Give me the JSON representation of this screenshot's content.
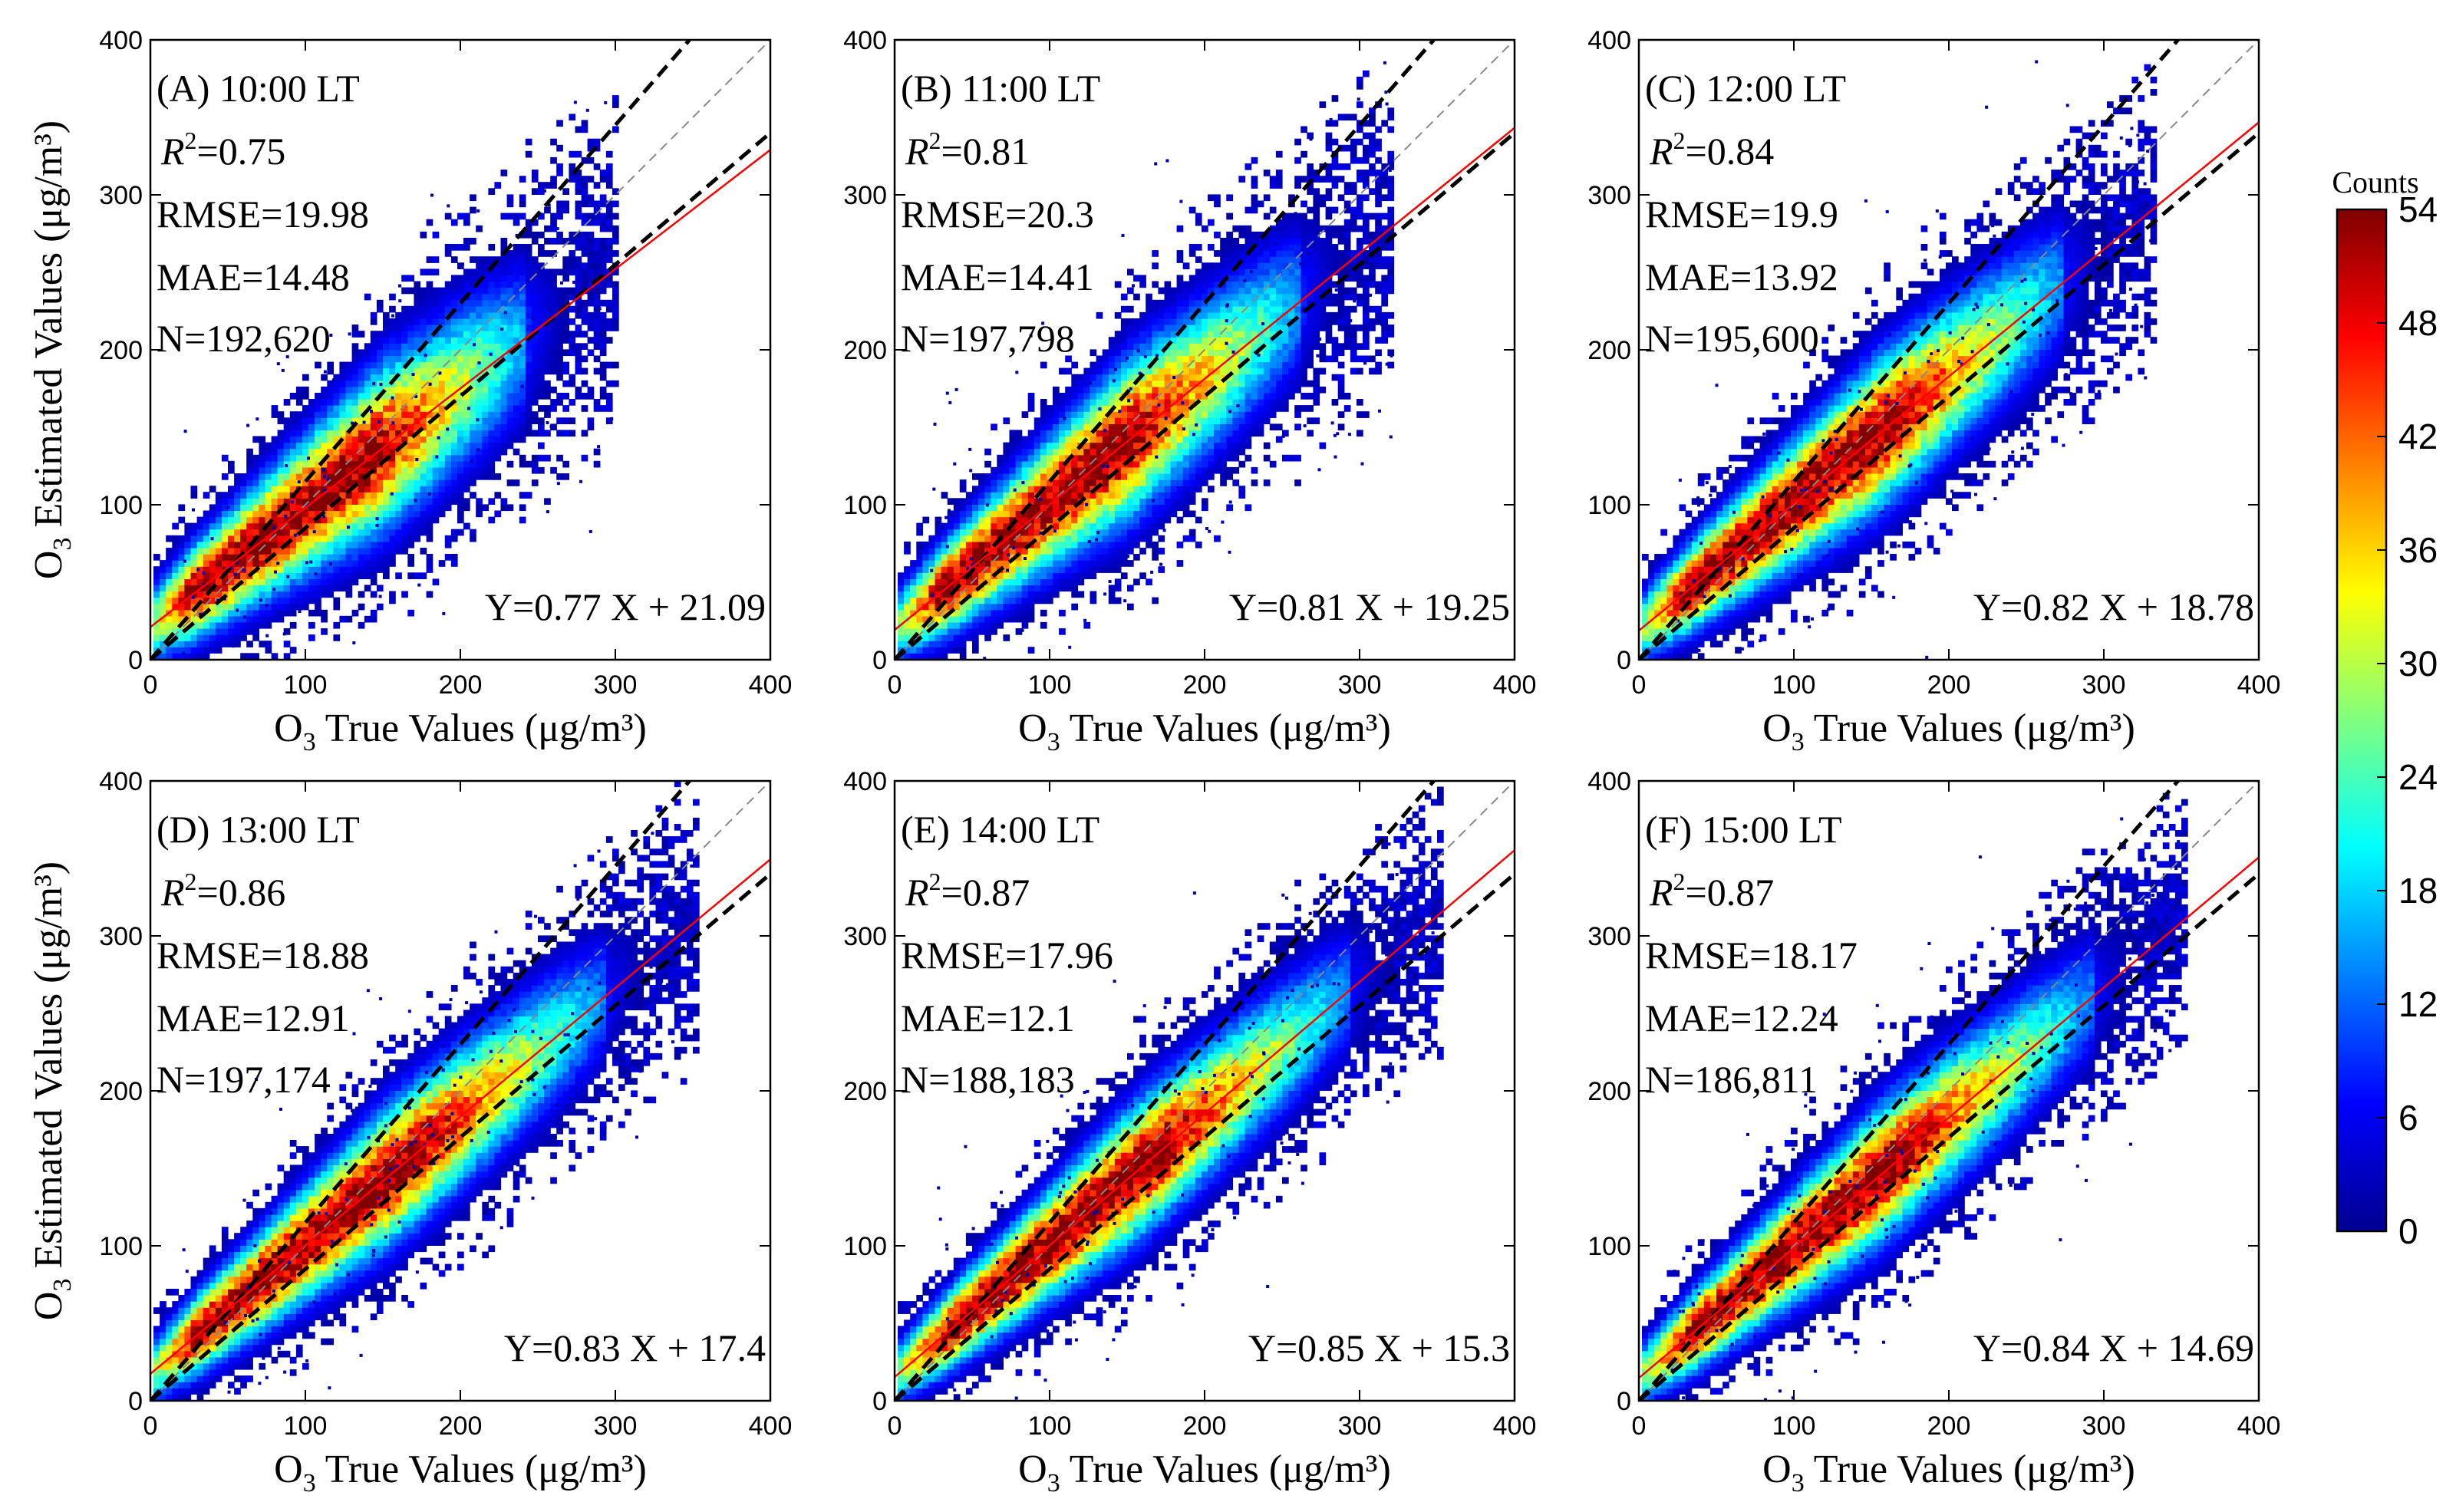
{
  "chart_data": [
    {
      "type": "heatmap",
      "panel": "(A) 10:00 LT",
      "stats": {
        "r2": "=0.75",
        "rmse": "RMSE=19.98",
        "mae": "MAE=14.48",
        "n": "N=192,620"
      },
      "equation": "Y=0.77 X + 21.09",
      "fit": {
        "slope": 0.77,
        "intercept": 21.09
      },
      "cloud": {
        "halfwidth": 42,
        "max": 240,
        "peak": [
          25,
          140
        ]
      },
      "xlim": [
        0,
        400
      ],
      "ylim": [
        0,
        400
      ]
    },
    {
      "type": "heatmap",
      "panel": "(B) 11:00 LT",
      "stats": {
        "r2": "=0.81",
        "rmse": "RMSE=20.3",
        "mae": "MAE=14.41",
        "n": "N=197,798"
      },
      "equation": "Y=0.81 X + 19.25",
      "fit": {
        "slope": 0.81,
        "intercept": 19.25
      },
      "cloud": {
        "halfwidth": 40,
        "max": 260,
        "peak": [
          30,
          150
        ]
      },
      "xlim": [
        0,
        400
      ],
      "ylim": [
        0,
        400
      ]
    },
    {
      "type": "heatmap",
      "panel": "(C) 12:00 LT",
      "stats": {
        "r2": "=0.84",
        "rmse": "RMSE=19.9",
        "mae": "MAE=13.92",
        "n": "N=195,600"
      },
      "equation": "Y=0.82 X + 18.78",
      "fit": {
        "slope": 0.82,
        "intercept": 18.78
      },
      "cloud": {
        "halfwidth": 38,
        "max": 270,
        "peak": [
          30,
          160
        ]
      },
      "xlim": [
        0,
        400
      ],
      "ylim": [
        0,
        400
      ]
    },
    {
      "type": "heatmap",
      "panel": "(D) 13:00 LT",
      "stats": {
        "r2": "=0.86",
        "rmse": "RMSE=18.88",
        "mae": "MAE=12.91",
        "n": "N=197,174"
      },
      "equation": "Y=0.83 X + 17.4",
      "fit": {
        "slope": 0.83,
        "intercept": 17.4
      },
      "cloud": {
        "halfwidth": 35,
        "max": 290,
        "peak": [
          30,
          170
        ]
      },
      "xlim": [
        0,
        400
      ],
      "ylim": [
        0,
        400
      ]
    },
    {
      "type": "heatmap",
      "panel": "(E) 14:00 LT",
      "stats": {
        "r2": "=0.87",
        "rmse": "RMSE=17.96",
        "mae": "MAE=12.1",
        "n": "N=188,183"
      },
      "equation": "Y=0.85 X + 15.3",
      "fit": {
        "slope": 0.85,
        "intercept": 15.3
      },
      "cloud": {
        "halfwidth": 34,
        "max": 290,
        "peak": [
          35,
          170
        ]
      },
      "xlim": [
        0,
        400
      ],
      "ylim": [
        0,
        400
      ]
    },
    {
      "type": "heatmap",
      "panel": "(F) 15:00 LT",
      "stats": {
        "r2": "=0.87",
        "rmse": "RMSE=18.17",
        "mae": "MAE=12.24",
        "n": "N=186,811"
      },
      "equation": "Y=0.84 X + 14.69",
      "fit": {
        "slope": 0.84,
        "intercept": 14.69
      },
      "cloud": {
        "halfwidth": 34,
        "max": 290,
        "peak": [
          35,
          165
        ]
      },
      "xlim": [
        0,
        400
      ],
      "ylim": [
        0,
        400
      ]
    }
  ],
  "axes": {
    "xlabel": {
      "prefix": "O",
      "sub": "3",
      "rest": " True Values (μg/m³)"
    },
    "ylabel": {
      "prefix": "O",
      "sub": "3",
      "rest": " Estimated Values (μg/m³)"
    },
    "ticks": [
      "0",
      "100",
      "200",
      "300",
      "400"
    ]
  },
  "colorbar": {
    "title": "Counts",
    "ticks": [
      "54",
      "48",
      "42",
      "36",
      "30",
      "24",
      "18",
      "12",
      "6",
      "0"
    ],
    "range": [
      0,
      54
    ]
  },
  "reference_lines": {
    "one_to_one": 1.0,
    "bounds_slopes": [
      1.15,
      0.85
    ]
  },
  "colors": {
    "fit_line": "#ff0000",
    "reference_line": "#000000",
    "one_to_one_line": "#888888",
    "colormap": [
      "#00008f",
      "#0000ff",
      "#0080ff",
      "#00ffff",
      "#80ff80",
      "#ffff00",
      "#ff8000",
      "#ff0000",
      "#800000"
    ]
  }
}
